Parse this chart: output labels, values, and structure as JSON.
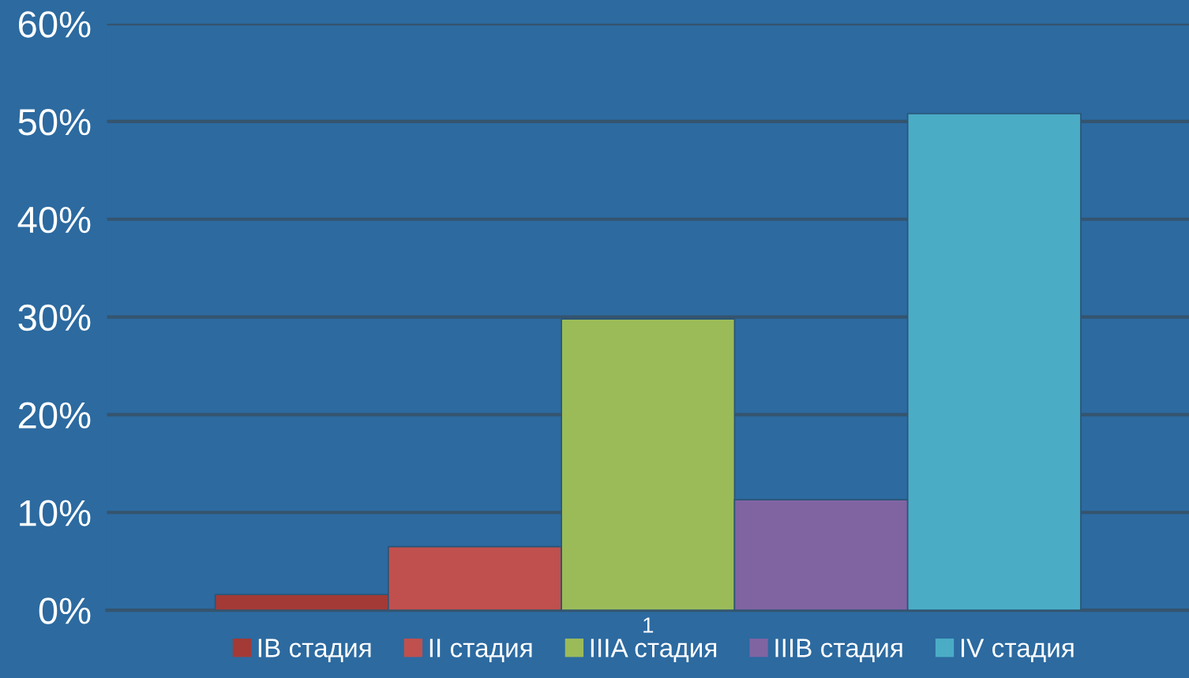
{
  "chart_data": {
    "type": "bar",
    "categories": [
      "1"
    ],
    "series": [
      {
        "name": "IB стадия",
        "color": "#a33a36",
        "values": [
          1.6
        ]
      },
      {
        "name": "II стадия",
        "color": "#c0504d",
        "values": [
          6.5
        ]
      },
      {
        "name": "IIIA стадия",
        "color": "#9bbb59",
        "values": [
          29.8
        ]
      },
      {
        "name": "IIIB стадия",
        "color": "#8064a2",
        "values": [
          11.3
        ]
      },
      {
        "name": "IV стадия",
        "color": "#4bacc6",
        "values": [
          50.8
        ]
      }
    ],
    "ylim": [
      0,
      60
    ],
    "yticks": [
      {
        "value": 0,
        "label": "0%"
      },
      {
        "value": 10,
        "label": "10%"
      },
      {
        "value": 20,
        "label": "20%"
      },
      {
        "value": 30,
        "label": "30%"
      },
      {
        "value": 40,
        "label": "40%"
      },
      {
        "value": 50,
        "label": "50%"
      },
      {
        "value": 60,
        "label": "60%"
      }
    ],
    "grid": "y",
    "legend": "bottom"
  }
}
